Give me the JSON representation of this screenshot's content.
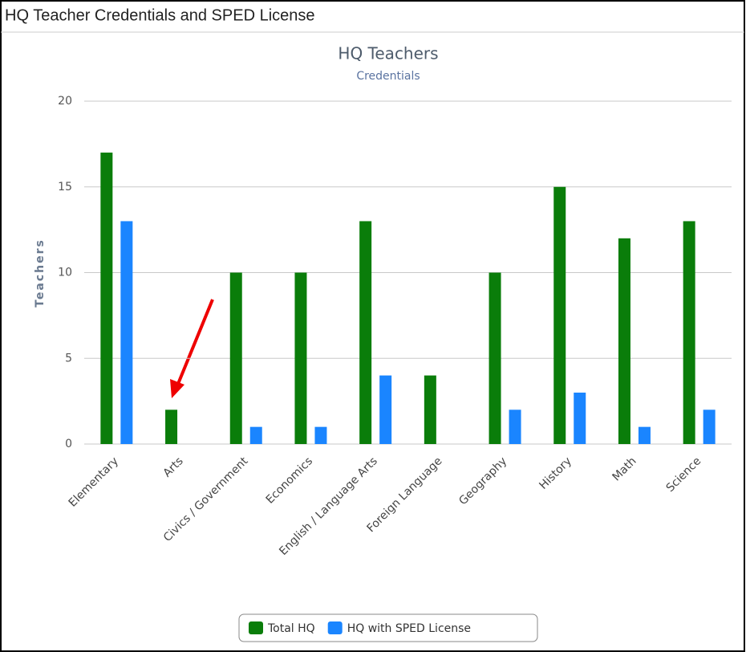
{
  "header": {
    "title": "HQ Teacher Credentials and SPED License"
  },
  "chart_data": {
    "type": "bar",
    "title": "HQ Teachers",
    "subtitle": "Credentials",
    "y_label": "Teachers",
    "categories": [
      "Elementary",
      "Arts",
      "Civics / Government",
      "Economics",
      "English / Language Arts",
      "Foreign Language",
      "Geography",
      "History",
      "Math",
      "Science"
    ],
    "series": [
      {
        "name": "Total HQ",
        "color": "#0a7d0a",
        "values": [
          17,
          2,
          10,
          10,
          13,
          4,
          10,
          15,
          12,
          13
        ]
      },
      {
        "name": "HQ with SPED License",
        "color": "#1a85ff",
        "values": [
          13,
          0,
          1,
          1,
          4,
          0,
          2,
          3,
          1,
          2
        ]
      }
    ],
    "ylim": [
      0,
      20
    ],
    "yticks": [
      0,
      5,
      10,
      15,
      20
    ],
    "grid": true,
    "legend": "bottom"
  }
}
